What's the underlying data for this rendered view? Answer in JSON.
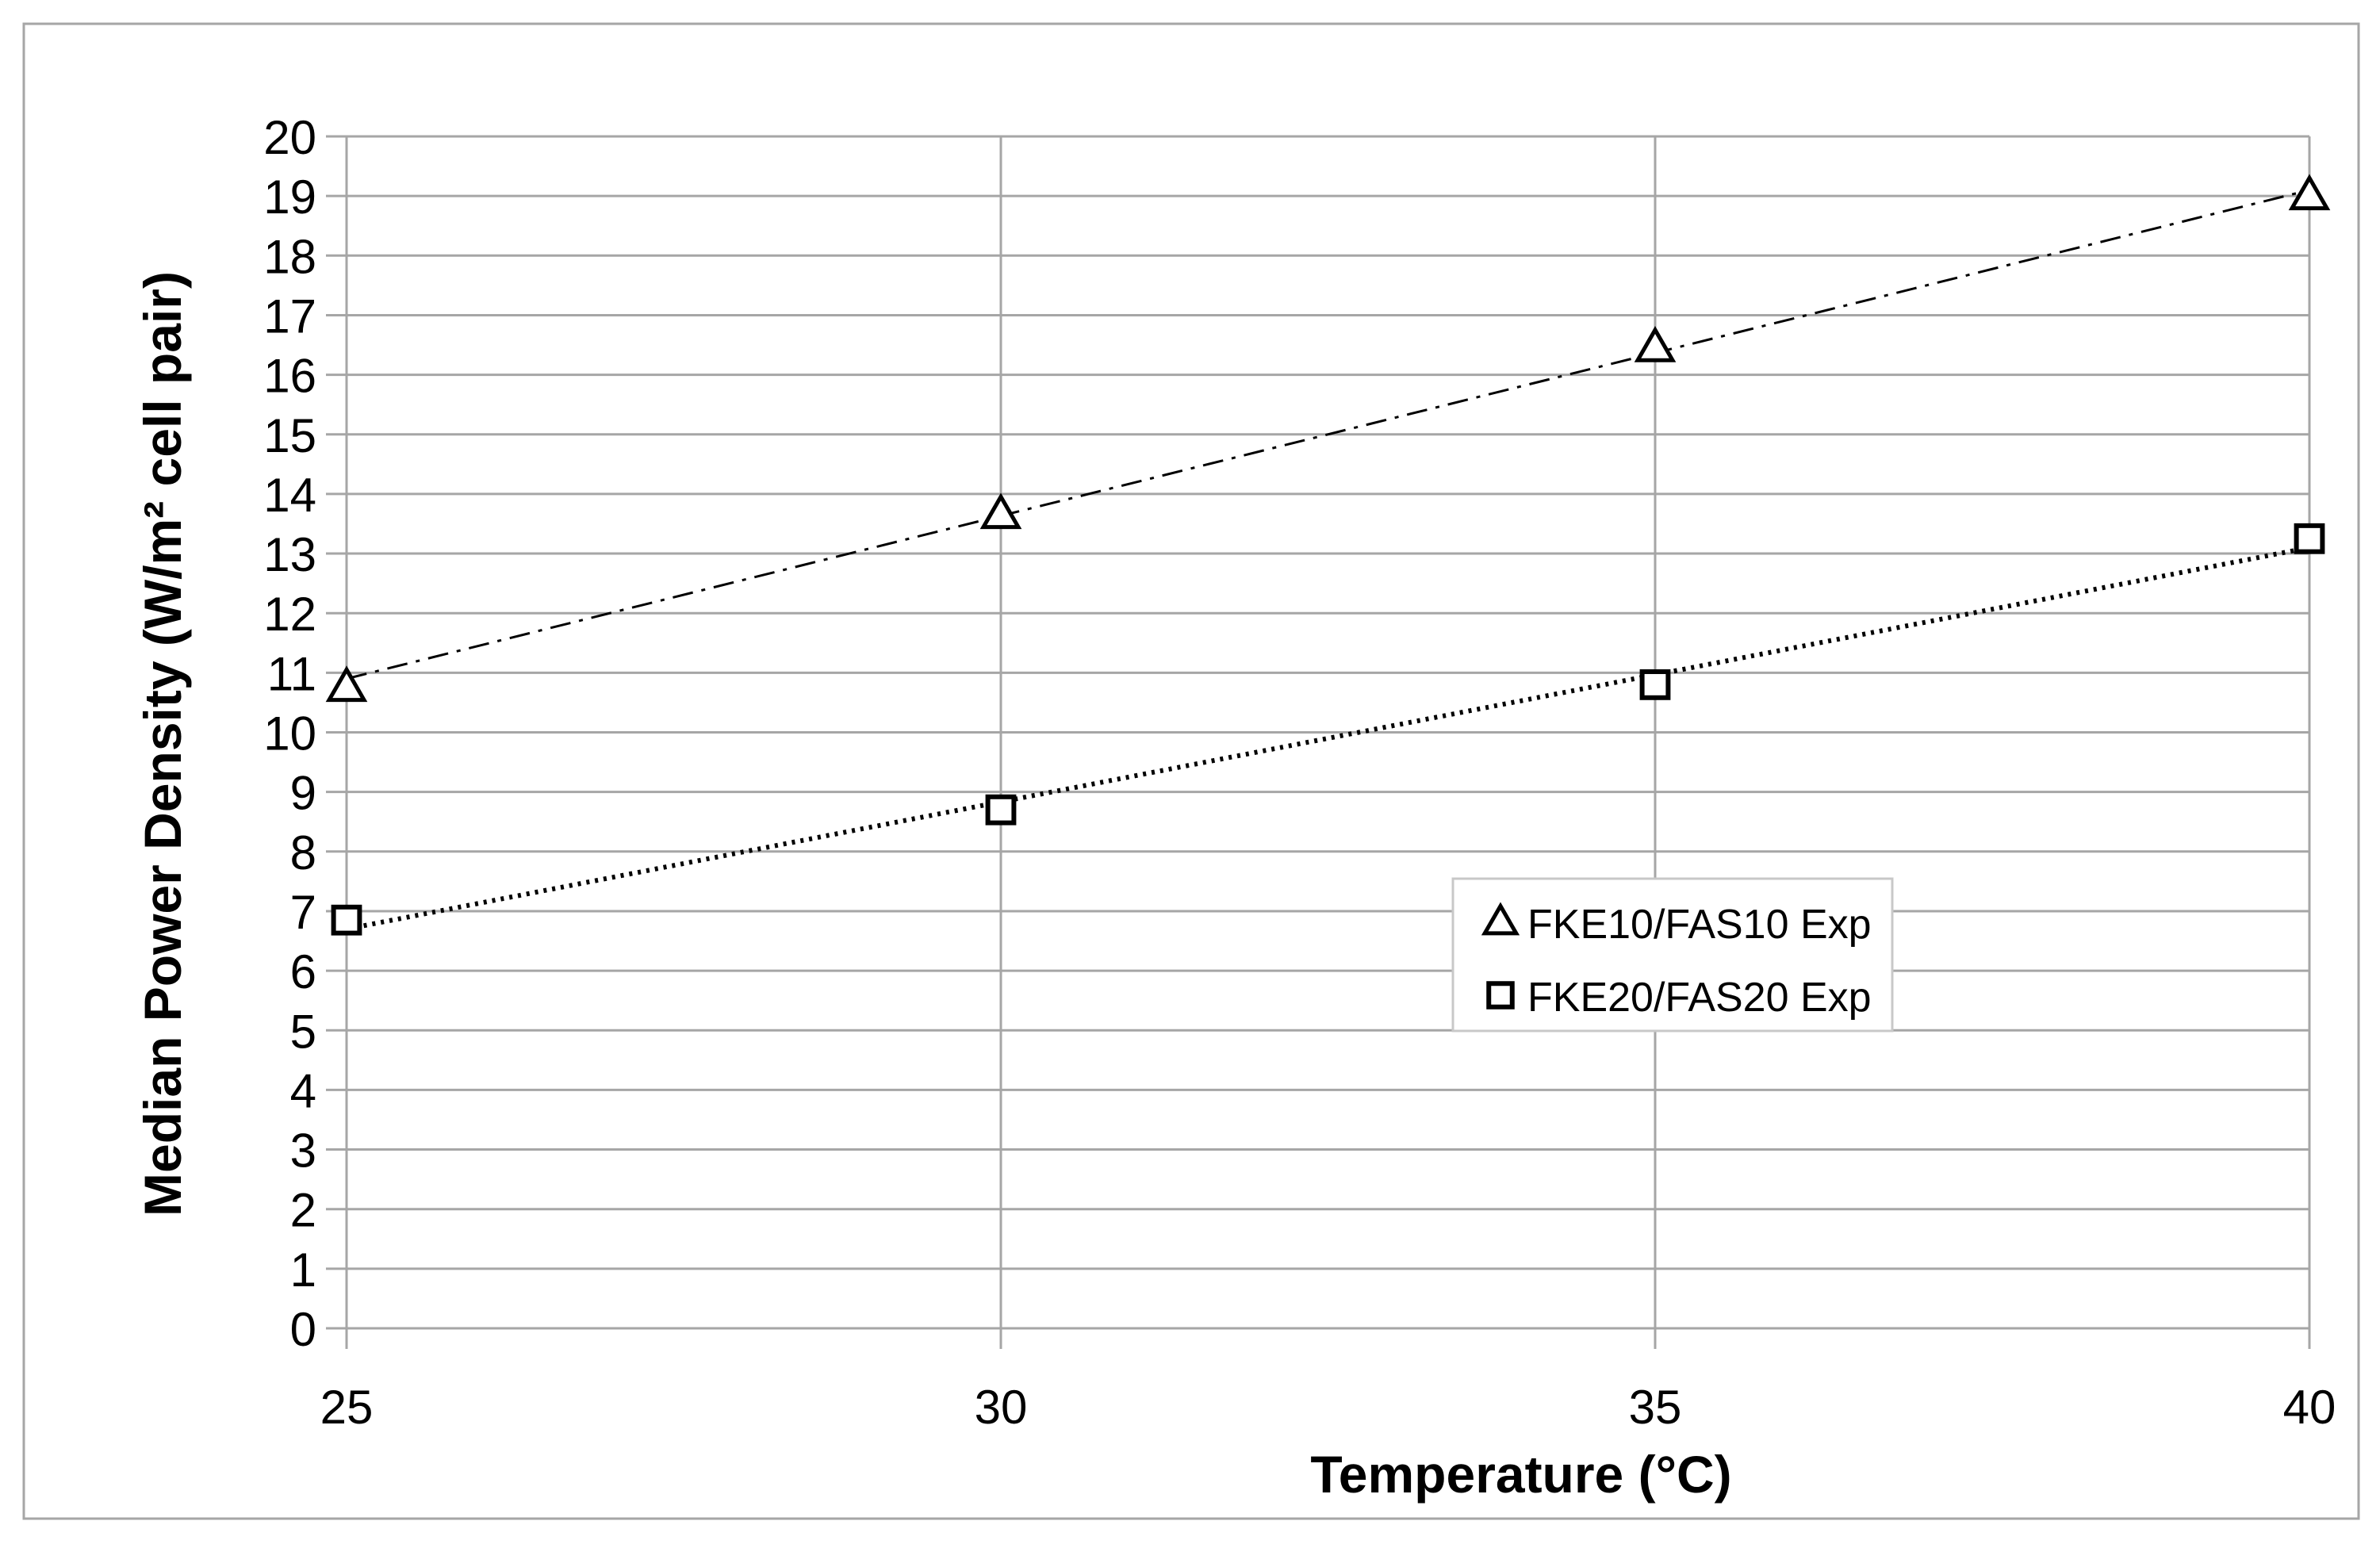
{
  "chart_data": {
    "type": "scatter",
    "title": "",
    "xlabel": "Temperature (°C)",
    "ylabel": "Median Power Density  (W/m² cell pair)",
    "xlim": [
      25,
      40
    ],
    "ylim": [
      0,
      20
    ],
    "xticks": [
      25,
      30,
      35,
      40
    ],
    "yticks": [
      0,
      1,
      2,
      3,
      4,
      5,
      6,
      7,
      8,
      9,
      10,
      11,
      12,
      13,
      14,
      15,
      16,
      17,
      18,
      19,
      20
    ],
    "grid": true,
    "legend_position": "center-right",
    "series": [
      {
        "name": "FKE10/FAS10 Exp",
        "marker": "triangle",
        "trendline": "dash-dot",
        "x": [
          25,
          30,
          35,
          40
        ],
        "y": [
          10.75,
          13.65,
          16.45,
          19.0
        ],
        "trend": [
          10.9,
          19.1
        ]
      },
      {
        "name": "FKE20/FAS20 Exp",
        "marker": "square",
        "trendline": "dotted",
        "x": [
          25,
          30,
          35,
          40
        ],
        "y": [
          6.85,
          8.7,
          10.8,
          13.25
        ],
        "trend": [
          6.7,
          13.1
        ]
      }
    ],
    "colors": {
      "frame": "#a6a6a6",
      "grid": "#a6a6a6",
      "ink": "#000000",
      "background": "#ffffff"
    }
  }
}
